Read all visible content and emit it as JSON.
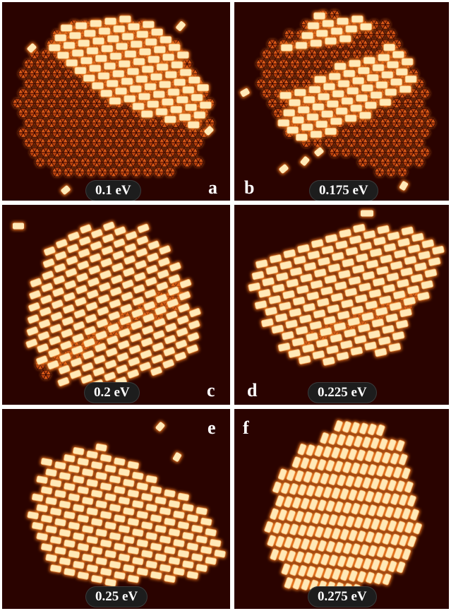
{
  "panels": [
    {
      "letter": "a",
      "energy": "0.1 eV"
    },
    {
      "letter": "b",
      "energy": "0.175 eV"
    },
    {
      "letter": "c",
      "energy": "0.2 eV"
    },
    {
      "letter": "d",
      "energy": "0.225 eV"
    },
    {
      "letter": "e",
      "energy": "0.25 eV"
    },
    {
      "letter": "f",
      "energy": "0.275 eV"
    }
  ],
  "colors": {
    "background": "#2a0300",
    "rectangle_phase": "#ffe9b8",
    "triangular_phase": "#c24a12",
    "glow": "#e8731e"
  }
}
